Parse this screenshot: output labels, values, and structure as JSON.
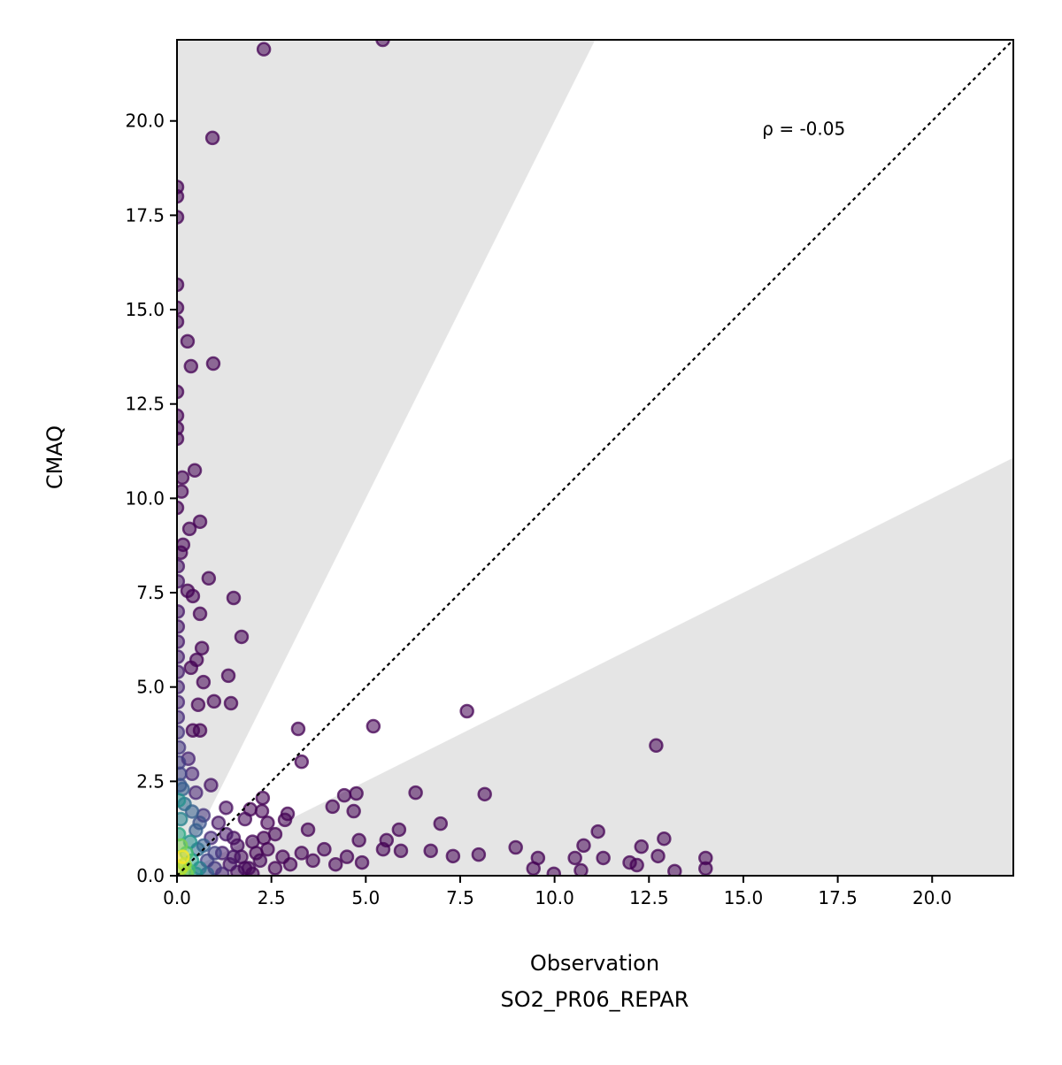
{
  "chart_data": {
    "type": "scatter",
    "title": "",
    "xlabel": "Observation",
    "xlabel_sub": "SO2_PR06_REPAR",
    "ylabel": "CMAQ",
    "xlim": [
      0,
      22.15
    ],
    "ylim": [
      0,
      22.15
    ],
    "xticks": [
      "0.0",
      "2.5",
      "5.0",
      "7.5",
      "10.0",
      "12.5",
      "15.0",
      "17.5",
      "20.0"
    ],
    "yticks": [
      "0.0",
      "2.5",
      "5.0",
      "7.5",
      "10.0",
      "12.5",
      "15.0",
      "17.5",
      "20.0"
    ],
    "tick_values": [
      0,
      2.5,
      5,
      7.5,
      10,
      12.5,
      15,
      17.5,
      20
    ],
    "annotation": {
      "text": "ρ = -0.05",
      "x": 15.5,
      "y": 19.8
    },
    "reference_line": {
      "slope": 1,
      "style": "dotted",
      "color": "#000000"
    },
    "shaded_bands": {
      "upper_slope": 2,
      "lower_slope": 0.5,
      "color": "#e5e5e5"
    },
    "colormap": "viridis",
    "point_alpha": 0.55,
    "points": [
      [
        2.3,
        21.9,
        0
      ],
      [
        5.45,
        22.15,
        0
      ],
      [
        0.94,
        19.55,
        0
      ],
      [
        0,
        18.25,
        0
      ],
      [
        0,
        18.0,
        0
      ],
      [
        0,
        17.45,
        0
      ],
      [
        0,
        15.66,
        0
      ],
      [
        0,
        15.05,
        0
      ],
      [
        0,
        14.68,
        0
      ],
      [
        0.28,
        14.16,
        0
      ],
      [
        0.37,
        13.5,
        0
      ],
      [
        0.96,
        13.57,
        0
      ],
      [
        0,
        12.82,
        0
      ],
      [
        0,
        12.19,
        0
      ],
      [
        0,
        11.86,
        0
      ],
      [
        0,
        11.58,
        0
      ],
      [
        0.47,
        10.74,
        0
      ],
      [
        0.14,
        10.55,
        0
      ],
      [
        0.12,
        10.18,
        0
      ],
      [
        0,
        9.75,
        0
      ],
      [
        0.61,
        9.38,
        0
      ],
      [
        0.33,
        9.19,
        0
      ],
      [
        0.16,
        8.77,
        0
      ],
      [
        0.1,
        8.56,
        0
      ],
      [
        0.84,
        7.88,
        0
      ],
      [
        0.28,
        7.55,
        0
      ],
      [
        0.42,
        7.41,
        0
      ],
      [
        1.5,
        7.36,
        0
      ],
      [
        0.61,
        6.94,
        0
      ],
      [
        1.71,
        6.33,
        0
      ],
      [
        0.66,
        6.03,
        0
      ],
      [
        0.52,
        5.72,
        0
      ],
      [
        0.37,
        5.51,
        0
      ],
      [
        1.36,
        5.3,
        0
      ],
      [
        0.7,
        5.13,
        0
      ],
      [
        0.98,
        4.62,
        0
      ],
      [
        1.43,
        4.57,
        0
      ],
      [
        0.56,
        4.53,
        0
      ],
      [
        0.42,
        3.85,
        0
      ],
      [
        0.61,
        3.85,
        0
      ],
      [
        7.68,
        4.36,
        0
      ],
      [
        5.2,
        3.96,
        0
      ],
      [
        3.21,
        3.89,
        0
      ],
      [
        3.3,
        3.02,
        0
      ],
      [
        12.69,
        3.45,
        0
      ],
      [
        8.15,
        2.16,
        0
      ],
      [
        6.32,
        2.2,
        0
      ],
      [
        4.43,
        2.13,
        0
      ],
      [
        4.75,
        2.18,
        0
      ],
      [
        4.12,
        1.83,
        0
      ],
      [
        4.68,
        1.71,
        0
      ],
      [
        5.88,
        1.22,
        0
      ],
      [
        6.98,
        1.38,
        0
      ],
      [
        11.15,
        1.17,
        0
      ],
      [
        10.77,
        0.8,
        0
      ],
      [
        8.97,
        0.75,
        0
      ],
      [
        12.3,
        0.77,
        0
      ],
      [
        12.9,
        0.98,
        0
      ],
      [
        12.74,
        0.52,
        0
      ],
      [
        9.56,
        0.47,
        0
      ],
      [
        10.54,
        0.47,
        0
      ],
      [
        11.29,
        0.47,
        0
      ],
      [
        11.99,
        0.35,
        0
      ],
      [
        12.18,
        0.28,
        0
      ],
      [
        14.0,
        0.47,
        0
      ],
      [
        14.0,
        0.19,
        0
      ],
      [
        13.18,
        0.12,
        0
      ],
      [
        9.98,
        0.05,
        0
      ],
      [
        9.44,
        0.19,
        0
      ],
      [
        10.7,
        0.14,
        0
      ],
      [
        7.99,
        0.56,
        0
      ],
      [
        7.31,
        0.52,
        0
      ],
      [
        6.72,
        0.66,
        0
      ],
      [
        5.93,
        0.66,
        0
      ],
      [
        5.46,
        0.7,
        0
      ],
      [
        5.55,
        0.94,
        0
      ],
      [
        4.82,
        0.94,
        0
      ],
      [
        3.47,
        1.22,
        0
      ],
      [
        2.86,
        1.48,
        0
      ],
      [
        2.93,
        1.64,
        0
      ],
      [
        2.25,
        1.71,
        0
      ],
      [
        1.94,
        1.76,
        0
      ],
      [
        2.27,
        2.06,
        0
      ],
      [
        0.02,
        8.2,
        0.05
      ],
      [
        0.02,
        7.8,
        0.05
      ],
      [
        0.02,
        7.0,
        0.06
      ],
      [
        0.02,
        6.6,
        0.06
      ],
      [
        0.02,
        6.2,
        0.07
      ],
      [
        0.02,
        5.8,
        0.08
      ],
      [
        0.02,
        5.4,
        0.08
      ],
      [
        0.02,
        5.0,
        0.1
      ],
      [
        0.02,
        4.6,
        0.1
      ],
      [
        0.02,
        4.2,
        0.12
      ],
      [
        0.02,
        3.8,
        0.14
      ],
      [
        0.05,
        3.4,
        0.16
      ],
      [
        0.05,
        3.0,
        0.18
      ],
      [
        0.08,
        2.7,
        0.2
      ],
      [
        0.08,
        2.4,
        0.25
      ],
      [
        0.9,
        2.4,
        0.05
      ],
      [
        1.3,
        1.8,
        0.03
      ],
      [
        0.5,
        2.2,
        0.1
      ],
      [
        0.3,
        3.1,
        0.1
      ],
      [
        0.4,
        2.7,
        0.1
      ],
      [
        1.8,
        1.5,
        0.02
      ],
      [
        2.4,
        1.4,
        0
      ],
      [
        2.6,
        1.1,
        0
      ],
      [
        2.4,
        0.7,
        0
      ],
      [
        2.6,
        0.2,
        0
      ],
      [
        2.8,
        0.5,
        0
      ],
      [
        3.0,
        0.3,
        0
      ],
      [
        3.3,
        0.6,
        0
      ],
      [
        3.6,
        0.4,
        0
      ],
      [
        3.9,
        0.7,
        0
      ],
      [
        4.2,
        0.3,
        0
      ],
      [
        4.5,
        0.5,
        0
      ],
      [
        4.9,
        0.35,
        0
      ],
      [
        2.0,
        0.05,
        0
      ],
      [
        2.1,
        0.6,
        0
      ],
      [
        2.3,
        1.0,
        0
      ],
      [
        2.0,
        0.9,
        0.01
      ],
      [
        2.2,
        0.4,
        0.01
      ],
      [
        1.9,
        0.2,
        0.02
      ],
      [
        1.7,
        0.5,
        0.02
      ],
      [
        1.8,
        0.2,
        0.02
      ],
      [
        1.6,
        0.1,
        0.03
      ],
      [
        1.5,
        1.0,
        0.03
      ],
      [
        1.6,
        0.8,
        0.03
      ],
      [
        1.4,
        0.3,
        0.05
      ],
      [
        1.5,
        0.5,
        0.05
      ],
      [
        1.1,
        1.4,
        0.05
      ],
      [
        1.3,
        1.1,
        0.06
      ],
      [
        1.2,
        0.6,
        0.08
      ],
      [
        1.2,
        0.05,
        0.1
      ],
      [
        0.9,
        1.0,
        0.12
      ],
      [
        1.0,
        0.2,
        0.15
      ],
      [
        0.7,
        1.6,
        0.15
      ],
      [
        1.0,
        0.6,
        0.2
      ],
      [
        0.8,
        0.4,
        0.2
      ],
      [
        0.6,
        1.4,
        0.25
      ],
      [
        0.8,
        0.05,
        0.3
      ],
      [
        0.7,
        0.8,
        0.3
      ],
      [
        0.5,
        1.2,
        0.3
      ],
      [
        0.4,
        1.7,
        0.3
      ],
      [
        0.15,
        2.3,
        0.3
      ],
      [
        0.55,
        0.7,
        0.35
      ],
      [
        0.2,
        1.9,
        0.35
      ],
      [
        0.6,
        0.2,
        0.4
      ],
      [
        0.1,
        1.5,
        0.45
      ],
      [
        0.35,
        0.9,
        0.5
      ],
      [
        0.5,
        0.05,
        0.5
      ],
      [
        0.05,
        2.0,
        0.5
      ],
      [
        0.4,
        0.4,
        0.55
      ],
      [
        0.05,
        1.1,
        0.6
      ],
      [
        0.25,
        0.6,
        0.7
      ],
      [
        0.3,
        0.15,
        0.7
      ],
      [
        0.1,
        0.8,
        0.8
      ],
      [
        0.25,
        0.05,
        0.8
      ],
      [
        0.2,
        0.3,
        0.85
      ],
      [
        0.1,
        0.2,
        0.9
      ],
      [
        0.15,
        0.5,
        1.0
      ]
    ]
  }
}
